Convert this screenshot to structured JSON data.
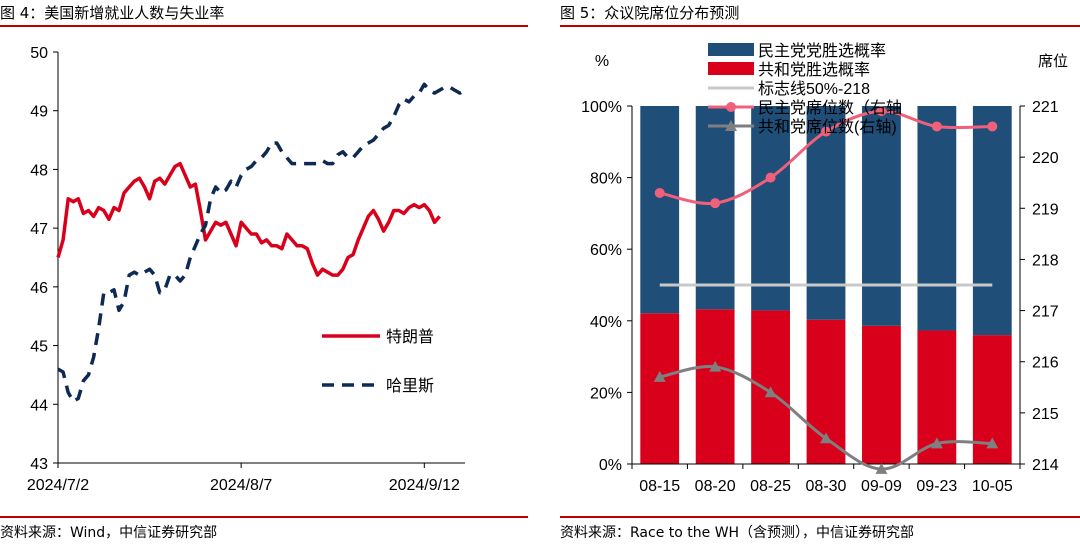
{
  "left": {
    "title": "图 4：美国新增就业人数与失业率",
    "source": "资料来源：Wind，中信证券研究部",
    "chart_data": {
      "type": "line",
      "title": "",
      "ylim": [
        43,
        50
      ],
      "yticks": [
        43,
        44,
        45,
        46,
        47,
        48,
        49,
        50
      ],
      "x_start": "2024/7/2",
      "x_end": "2024/9/20",
      "xtick_labels": [
        "2024/7/2",
        "2024/8/7",
        "2024/9/12"
      ],
      "legend_position": "right-bottom",
      "grid": false,
      "series": [
        {
          "name": "特朗普",
          "color": "#d9001b",
          "dash": "solid",
          "points": [
            [
              "2024/7/2",
              46.5
            ],
            [
              "2024/7/3",
              46.8
            ],
            [
              "2024/7/4",
              47.5
            ],
            [
              "2024/7/5",
              47.45
            ],
            [
              "2024/7/6",
              47.5
            ],
            [
              "2024/7/7",
              47.25
            ],
            [
              "2024/7/8",
              47.3
            ],
            [
              "2024/7/9",
              47.2
            ],
            [
              "2024/7/10",
              47.35
            ],
            [
              "2024/7/11",
              47.3
            ],
            [
              "2024/7/12",
              47.15
            ],
            [
              "2024/7/13",
              47.35
            ],
            [
              "2024/7/14",
              47.3
            ],
            [
              "2024/7/15",
              47.6
            ],
            [
              "2024/7/16",
              47.7
            ],
            [
              "2024/7/17",
              47.8
            ],
            [
              "2024/7/18",
              47.85
            ],
            [
              "2024/7/19",
              47.7
            ],
            [
              "2024/7/20",
              47.5
            ],
            [
              "2024/7/21",
              47.8
            ],
            [
              "2024/7/22",
              47.85
            ],
            [
              "2024/7/23",
              47.75
            ],
            [
              "2024/7/24",
              47.9
            ],
            [
              "2024/7/25",
              48.05
            ],
            [
              "2024/7/26",
              48.1
            ],
            [
              "2024/7/27",
              47.9
            ],
            [
              "2024/7/28",
              47.7
            ],
            [
              "2024/7/29",
              47.75
            ],
            [
              "2024/7/30",
              47.3
            ],
            [
              "2024/7/31",
              46.8
            ],
            [
              "2024/8/1",
              46.95
            ],
            [
              "2024/8/2",
              47.1
            ],
            [
              "2024/8/3",
              47.05
            ],
            [
              "2024/8/4",
              47.1
            ],
            [
              "2024/8/5",
              46.9
            ],
            [
              "2024/8/6",
              46.7
            ],
            [
              "2024/8/7",
              47.1
            ],
            [
              "2024/8/8",
              47.0
            ],
            [
              "2024/8/9",
              46.9
            ],
            [
              "2024/8/10",
              46.9
            ],
            [
              "2024/8/11",
              46.75
            ],
            [
              "2024/8/12",
              46.8
            ],
            [
              "2024/8/13",
              46.7
            ],
            [
              "2024/8/14",
              46.7
            ],
            [
              "2024/8/15",
              46.65
            ],
            [
              "2024/8/16",
              46.9
            ],
            [
              "2024/8/17",
              46.8
            ],
            [
              "2024/8/18",
              46.7
            ],
            [
              "2024/8/19",
              46.7
            ],
            [
              "2024/8/20",
              46.65
            ],
            [
              "2024/8/21",
              46.4
            ],
            [
              "2024/8/22",
              46.2
            ],
            [
              "2024/8/23",
              46.3
            ],
            [
              "2024/8/24",
              46.25
            ],
            [
              "2024/8/25",
              46.2
            ],
            [
              "2024/8/26",
              46.2
            ],
            [
              "2024/8/27",
              46.3
            ],
            [
              "2024/8/28",
              46.5
            ],
            [
              "2024/8/29",
              46.55
            ],
            [
              "2024/8/30",
              46.8
            ],
            [
              "2024/8/31",
              47.0
            ],
            [
              "2024/9/1",
              47.2
            ],
            [
              "2024/9/2",
              47.3
            ],
            [
              "2024/9/3",
              47.15
            ],
            [
              "2024/9/4",
              46.95
            ],
            [
              "2024/9/5",
              47.1
            ],
            [
              "2024/9/6",
              47.3
            ],
            [
              "2024/9/7",
              47.3
            ],
            [
              "2024/9/8",
              47.25
            ],
            [
              "2024/9/9",
              47.35
            ],
            [
              "2024/9/10",
              47.4
            ],
            [
              "2024/9/11",
              47.35
            ],
            [
              "2024/9/12",
              47.4
            ],
            [
              "2024/9/13",
              47.3
            ],
            [
              "2024/9/14",
              47.1
            ],
            [
              "2024/9/15",
              47.2
            ]
          ]
        },
        {
          "name": "哈里斯",
          "color": "#0d2a55",
          "dash": "dashed",
          "points": [
            [
              "2024/7/2",
              44.6
            ],
            [
              "2024/7/3",
              44.55
            ],
            [
              "2024/7/4",
              44.2
            ],
            [
              "2024/7/5",
              44.05
            ],
            [
              "2024/7/6",
              44.1
            ],
            [
              "2024/7/7",
              44.4
            ],
            [
              "2024/7/8",
              44.5
            ],
            [
              "2024/7/9",
              44.8
            ],
            [
              "2024/7/10",
              45.3
            ],
            [
              "2024/7/11",
              45.9
            ],
            [
              "2024/7/12",
              45.9
            ],
            [
              "2024/7/13",
              45.95
            ],
            [
              "2024/7/14",
              45.6
            ],
            [
              "2024/7/15",
              45.75
            ],
            [
              "2024/7/16",
              46.2
            ],
            [
              "2024/7/17",
              46.25
            ],
            [
              "2024/7/18",
              46.2
            ],
            [
              "2024/7/19",
              46.25
            ],
            [
              "2024/7/20",
              46.3
            ],
            [
              "2024/7/21",
              46.2
            ],
            [
              "2024/7/22",
              45.9
            ],
            [
              "2024/7/23",
              45.95
            ],
            [
              "2024/7/24",
              46.2
            ],
            [
              "2024/7/25",
              46.2
            ],
            [
              "2024/7/26",
              46.1
            ],
            [
              "2024/7/27",
              46.2
            ],
            [
              "2024/7/28",
              46.5
            ],
            [
              "2024/7/29",
              46.7
            ],
            [
              "2024/7/30",
              46.9
            ],
            [
              "2024/7/31",
              47.05
            ],
            [
              "2024/8/1",
              47.5
            ],
            [
              "2024/8/2",
              47.7
            ],
            [
              "2024/8/3",
              47.6
            ],
            [
              "2024/8/4",
              47.65
            ],
            [
              "2024/8/5",
              47.8
            ],
            [
              "2024/8/6",
              47.7
            ],
            [
              "2024/8/7",
              47.9
            ],
            [
              "2024/8/8",
              48.0
            ],
            [
              "2024/8/9",
              48.05
            ],
            [
              "2024/8/10",
              48.15
            ],
            [
              "2024/8/11",
              48.2
            ],
            [
              "2024/8/12",
              48.3
            ],
            [
              "2024/8/13",
              48.45
            ],
            [
              "2024/8/14",
              48.45
            ],
            [
              "2024/8/15",
              48.3
            ],
            [
              "2024/8/16",
              48.2
            ],
            [
              "2024/8/17",
              48.1
            ],
            [
              "2024/8/18",
              48.1
            ],
            [
              "2024/8/19",
              48.1
            ],
            [
              "2024/8/20",
              48.1
            ],
            [
              "2024/8/21",
              48.1
            ],
            [
              "2024/8/22",
              48.1
            ],
            [
              "2024/8/23",
              48.15
            ],
            [
              "2024/8/24",
              48.1
            ],
            [
              "2024/8/25",
              48.1
            ],
            [
              "2024/8/26",
              48.25
            ],
            [
              "2024/8/27",
              48.3
            ],
            [
              "2024/8/28",
              48.2
            ],
            [
              "2024/8/29",
              48.2
            ],
            [
              "2024/8/30",
              48.3
            ],
            [
              "2024/8/31",
              48.4
            ],
            [
              "2024/9/1",
              48.45
            ],
            [
              "2024/9/2",
              48.5
            ],
            [
              "2024/9/3",
              48.6
            ],
            [
              "2024/9/4",
              48.7
            ],
            [
              "2024/9/5",
              48.75
            ],
            [
              "2024/9/6",
              48.9
            ],
            [
              "2024/9/7",
              49.1
            ],
            [
              "2024/9/8",
              49.2
            ],
            [
              "2024/9/9",
              49.15
            ],
            [
              "2024/9/10",
              49.25
            ],
            [
              "2024/9/11",
              49.3
            ],
            [
              "2024/9/12",
              49.45
            ],
            [
              "2024/9/13",
              49.35
            ],
            [
              "2024/9/14",
              49.3
            ],
            [
              "2024/9/15",
              49.35
            ],
            [
              "2024/9/16",
              49.4
            ],
            [
              "2024/9/17",
              49.4
            ],
            [
              "2024/9/18",
              49.35
            ],
            [
              "2024/9/19",
              49.3
            ],
            [
              "2024/9/20",
              49.35
            ]
          ]
        }
      ]
    }
  },
  "right": {
    "title": "图 5：众议院席位分布预测",
    "source": "资料来源：Race to the WH（含预测），中信证券研究部",
    "chart_data": {
      "type": "bar",
      "stacked": true,
      "categories": [
        "08-15",
        "08-20",
        "08-25",
        "08-30",
        "09-09",
        "09-23",
        "10-05"
      ],
      "y_left_label": "%",
      "y_right_label": "席位",
      "y_left_range": [
        0,
        1
      ],
      "y_left_ticks": [
        "0%",
        "20%",
        "40%",
        "60%",
        "80%",
        "100%"
      ],
      "y_right_range": [
        214,
        221
      ],
      "y_right_ticks": [
        214,
        215,
        216,
        217,
        218,
        219,
        220,
        221
      ],
      "legend_position": "top",
      "series": [
        {
          "name": "民主党党胜选概率",
          "kind": "bar",
          "axis": "left",
          "color": "#1f4e79",
          "values": [
            0.579,
            0.568,
            0.571,
            0.597,
            0.614,
            0.627,
            0.64
          ]
        },
        {
          "name": "共和党胜选概率",
          "kind": "bar",
          "axis": "left",
          "color": "#d9001b",
          "values": [
            0.421,
            0.432,
            0.429,
            0.403,
            0.386,
            0.373,
            0.36
          ]
        },
        {
          "name": "标志线50%-218",
          "kind": "line",
          "axis": "left",
          "color": "#c8c8c8",
          "values": [
            0.5,
            0.5,
            0.5,
            0.5,
            0.5,
            0.5,
            0.5
          ]
        },
        {
          "name": "民主党席位数（右轴",
          "kind": "line",
          "axis": "right",
          "color": "#f0607a",
          "marker": "circle",
          "values": [
            219.3,
            219.1,
            219.6,
            220.5,
            220.9,
            220.6,
            220.6
          ]
        },
        {
          "name": "共和党席位数(右轴)",
          "kind": "line",
          "axis": "right",
          "color": "#7f7f7f",
          "marker": "triangle",
          "values": [
            215.7,
            215.9,
            215.4,
            214.5,
            213.9,
            214.4,
            214.4
          ]
        }
      ]
    }
  }
}
